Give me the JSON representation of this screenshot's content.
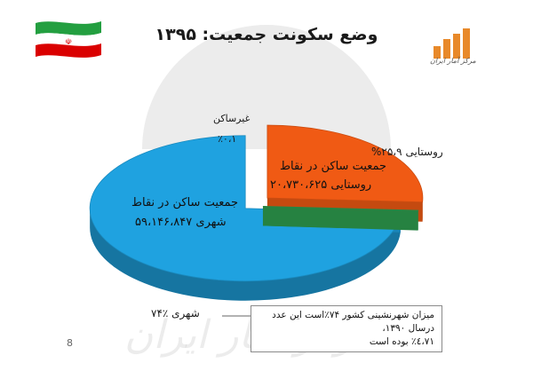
{
  "title": "وضع سکونت جمعیت: ۱۳۹۵",
  "logo": {
    "text": "مرکز آمار ایران",
    "icon": "bar-chart-logo-icon",
    "color": "#e8892a"
  },
  "flag": {
    "icon": "iran-flag-icon",
    "colors": [
      "#239f40",
      "#ffffff",
      "#da0000"
    ]
  },
  "chart_data": {
    "type": "pie",
    "categories": [
      "روستایی",
      "غیرساکن",
      "شهری"
    ],
    "values": [
      25.9,
      0.1,
      74
    ],
    "colors": [
      "#f05a14",
      "#2e9e4f",
      "#1fa2e0"
    ],
    "labels": {
      "rural_pct": "روستایی ۲۵،۹%",
      "unsettled_title": "غیرساکن",
      "unsettled_pct": "٪۰،۱",
      "urban_pct": "شهری ٪۷۴",
      "rural_inner_1": "جمعیت ساکن در نقاط",
      "rural_inner_2": "روستایی ۲۰،۷۳۰،۶۲۵",
      "urban_inner_1": "جمعیت ساکن در نقاط",
      "urban_inner_2": "شهری ۵۹،۱۴۶،۸۴۷"
    }
  },
  "callout": {
    "line1": "میزان شهرنشینی کشور ۷۴٪است این عدد درسال ۱۳۹۰،",
    "line2": "۷۱،٤٪ بوده است"
  },
  "page_number": "8",
  "watermark": "مرکز آمار ایران"
}
